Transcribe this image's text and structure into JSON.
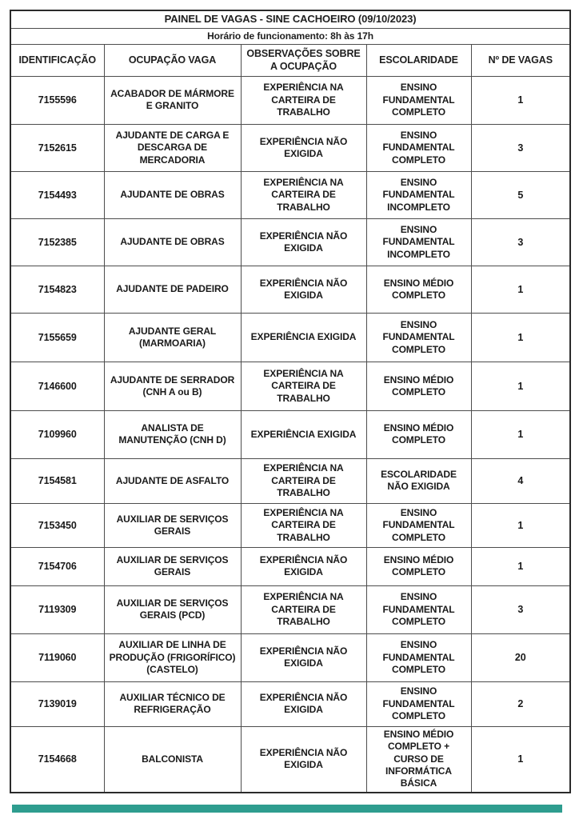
{
  "document": {
    "title": "PAINEL DE VAGAS - SINE CACHOEIRO (09/10/2023)",
    "subtitle": "Horário de funcionamento: 8h às 17h"
  },
  "table": {
    "columns": [
      "IDENTIFICAÇÃO",
      "OCUPAÇÃO VAGA",
      "OBSERVAÇÕES SOBRE A OCUPAÇÃO",
      "ESCOLARIDADE",
      "Nº DE VAGAS"
    ],
    "rows": [
      [
        "7155596",
        "ACABADOR DE MÁRMORE E GRANITO",
        "EXPERIÊNCIA NA CARTEIRA DE TRABALHO",
        "ENSINO FUNDAMENTAL COMPLETO",
        "1"
      ],
      [
        "7152615",
        "AJUDANTE DE CARGA E DESCARGA DE MERCADORIA",
        "EXPERIÊNCIA NÃO EXIGIDA",
        "ENSINO FUNDAMENTAL COMPLETO",
        "3"
      ],
      [
        "7154493",
        "AJUDANTE DE OBRAS",
        "EXPERIÊNCIA NA CARTEIRA DE TRABALHO",
        "ENSINO FUNDAMENTAL INCOMPLETO",
        "5"
      ],
      [
        "7152385",
        "AJUDANTE DE OBRAS",
        "EXPERIÊNCIA NÃO EXIGIDA",
        "ENSINO FUNDAMENTAL INCOMPLETO",
        "3"
      ],
      [
        "7154823",
        "AJUDANTE DE PADEIRO",
        "EXPERIÊNCIA NÃO EXIGIDA",
        "ENSINO MÉDIO COMPLETO",
        "1"
      ],
      [
        "7155659",
        "AJUDANTE GERAL (MARMOARIA)",
        "EXPERIÊNCIA EXIGIDA",
        "ENSINO FUNDAMENTAL COMPLETO",
        "1"
      ],
      [
        "7146600",
        "AJUDANTE DE SERRADOR (CNH A ou B)",
        "EXPERIÊNCIA NA CARTEIRA DE TRABALHO",
        "ENSINO MÉDIO COMPLETO",
        "1"
      ],
      [
        "7109960",
        "ANALISTA DE MANUTENÇÃO (CNH D)",
        "EXPERIÊNCIA EXIGIDA",
        "ENSINO MÉDIO COMPLETO",
        "1"
      ],
      [
        "7154581",
        "AJUDANTE DE ASFALTO",
        "EXPERIÊNCIA NA CARTEIRA DE TRABALHO",
        "ESCOLARIDADE NÃO EXIGIDA",
        "4"
      ],
      [
        "7153450",
        "AUXILIAR DE SERVIÇOS GERAIS",
        "EXPERIÊNCIA NA CARTEIRA DE TRABALHO",
        "ENSINO FUNDAMENTAL COMPLETO",
        "1"
      ],
      [
        "7154706",
        "AUXILIAR DE SERVIÇOS GERAIS",
        "EXPERIÊNCIA NÃO EXIGIDA",
        "ENSINO MÉDIO COMPLETO",
        "1"
      ],
      [
        "7119309",
        "AUXILIAR DE SERVIÇOS GERAIS (PCD)",
        "EXPERIÊNCIA NA CARTEIRA DE TRABALHO",
        "ENSINO FUNDAMENTAL COMPLETO",
        "3"
      ],
      [
        "7119060",
        "AUXILIAR DE LINHA DE PRODUÇÃO (FRIGORÍFICO) (CASTELO)",
        "EXPERIÊNCIA NÃO EXIGIDA",
        "ENSINO FUNDAMENTAL COMPLETO",
        "20"
      ],
      [
        "7139019",
        "AUXILIAR TÉCNICO DE REFRIGERAÇÃO",
        "EXPERIÊNCIA NÃO EXIGIDA",
        "ENSINO FUNDAMENTAL COMPLETO",
        "2"
      ],
      [
        "7154668",
        "BALCONISTA",
        "EXPERIÊNCIA NÃO EXIGIDA",
        "ENSINO MÉDIO COMPLETO + CURSO DE INFORMÁTICA BÁSICA",
        "1"
      ]
    ]
  },
  "colors": {
    "border": "#4d4d4d",
    "outer_border": "#2b2b2b",
    "text": "#1a1a1a",
    "footer_bar": "#2e9d8f"
  }
}
